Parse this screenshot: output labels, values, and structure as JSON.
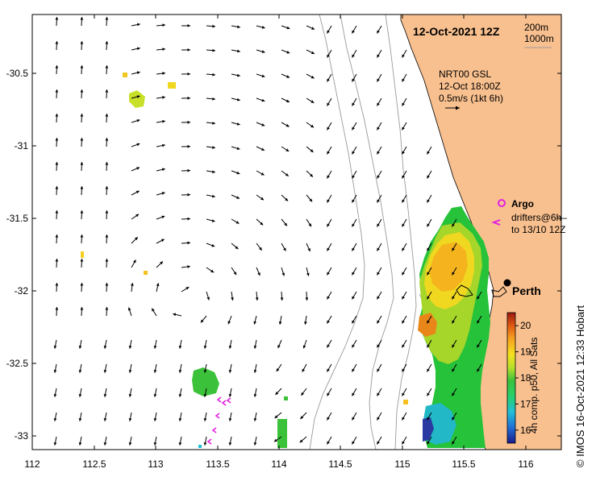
{
  "title": "12-Oct-2021 12Z",
  "depth_legend": {
    "line1": "200m",
    "line2": "1000m"
  },
  "current_legend": {
    "model": "NRT00 GSL",
    "time": "12-Oct 18:00Z",
    "scale": "0.5m/s (1kt 6h)"
  },
  "markers": {
    "argo_label": "Argo",
    "drifters_line1": "drifters@6h–",
    "drifters_line2": "to 13/10 12Z",
    "city": "Perth"
  },
  "x_ticks": [
    "112",
    "112.5",
    "113",
    "113.5",
    "114",
    "114.5",
    "115",
    "115.5",
    "116"
  ],
  "y_ticks": [
    "-30.5",
    "-31",
    "-31.5",
    "-32",
    "-32.5",
    "-33"
  ],
  "colorbar": {
    "ticks": [
      "20",
      "19",
      "18",
      "17",
      "16"
    ],
    "label": "4h comp. p50, All Sats",
    "min": 15.5,
    "max": 20.5,
    "colors": [
      "#1a1a8c",
      "#1f6fd6",
      "#22c0d6",
      "#26d06a",
      "#3cc23a",
      "#b8e02a",
      "#f5e020",
      "#f5a21e",
      "#e05a14",
      "#9a1a10"
    ]
  },
  "credit": "©  IMOS 16-Oct-2021 12:33 Hobart",
  "colors": {
    "land": "#f9c08f",
    "arrow": "#000000",
    "contour": "#9a9a9a",
    "marker": "#e020e0"
  }
}
